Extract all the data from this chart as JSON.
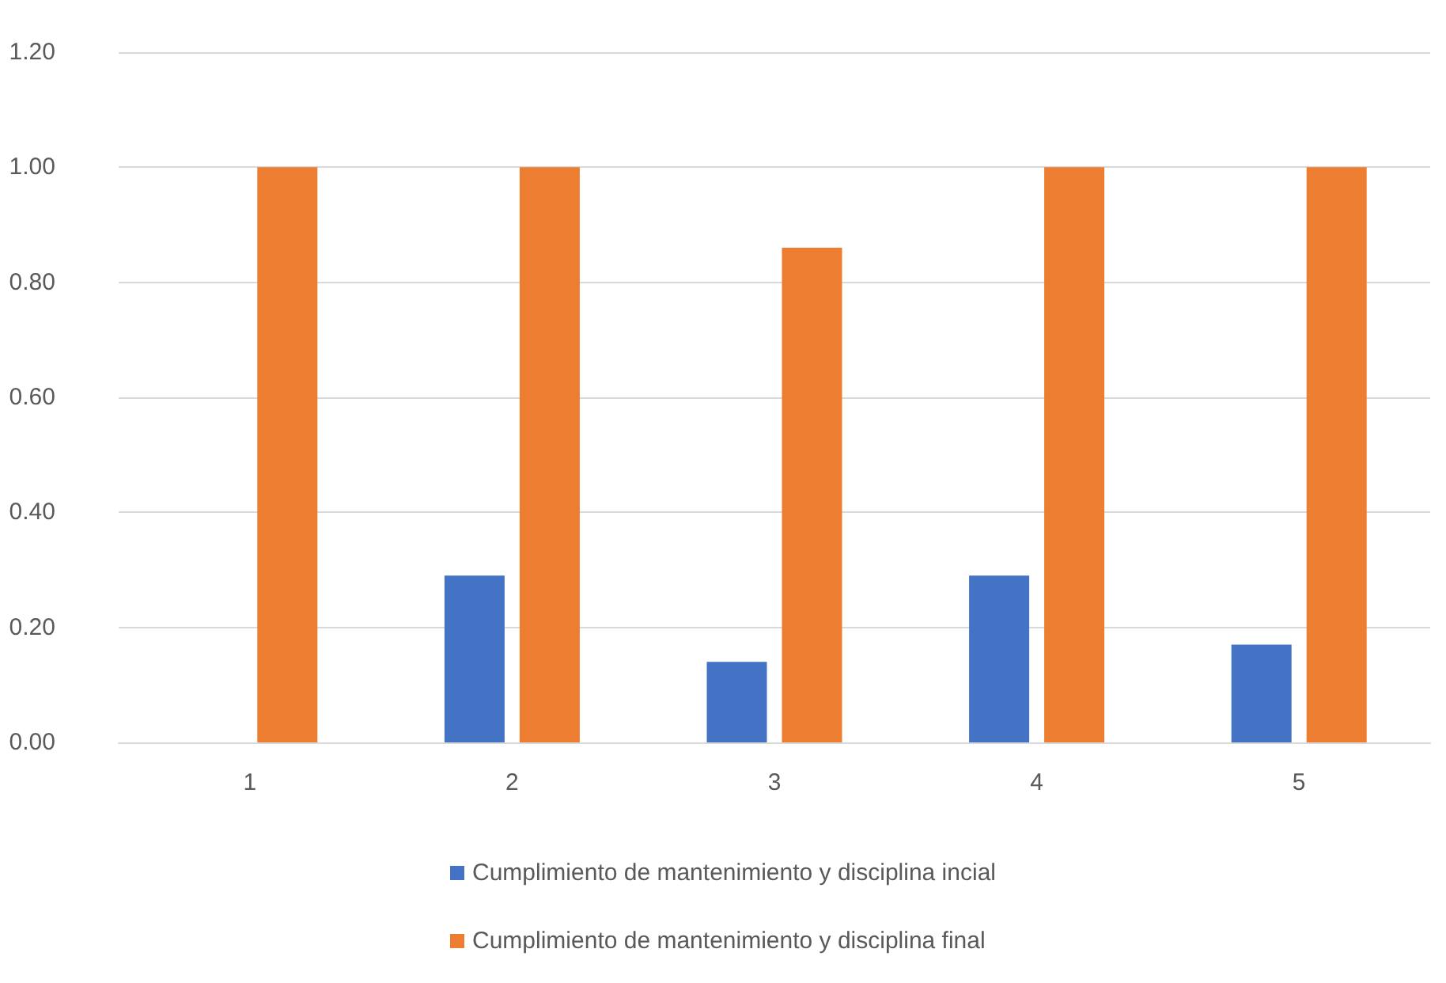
{
  "chart_data": {
    "type": "bar",
    "categories": [
      "1",
      "2",
      "3",
      "4",
      "5"
    ],
    "series": [
      {
        "name": "Cumplimiento de mantenimiento y disciplina incial",
        "color": "#4472c4",
        "values": [
          0,
          0.29,
          0.14,
          0.29,
          0.17
        ]
      },
      {
        "name": "Cumplimiento de mantenimiento y disciplina final",
        "color": "#ed7d31",
        "values": [
          1.0,
          1.0,
          0.86,
          1.0,
          1.0
        ]
      }
    ],
    "ylim": [
      0,
      1.2
    ],
    "yticks": [
      {
        "value": 0,
        "label": "0.00"
      },
      {
        "value": 0.2,
        "label": "0.20"
      },
      {
        "value": 0.4,
        "label": "0.40"
      },
      {
        "value": 0.6,
        "label": "0.60"
      },
      {
        "value": 0.8,
        "label": "0.80"
      },
      {
        "value": 1.0,
        "label": "1.00"
      },
      {
        "value": 1.2,
        "label": "1.20"
      }
    ],
    "grid": "y",
    "legend": "bottom"
  }
}
